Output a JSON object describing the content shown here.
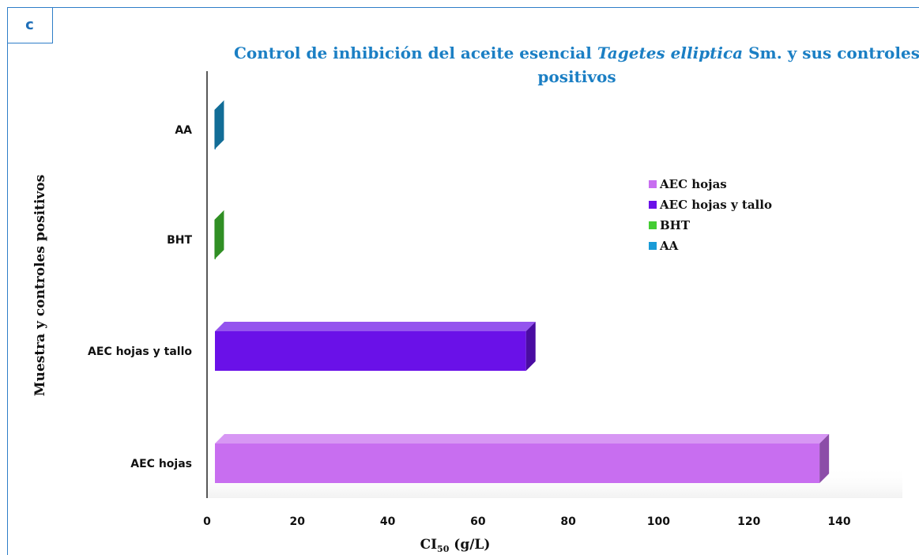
{
  "panel_label": "c",
  "title": {
    "part1": "Control de inhibición del aceite esencial ",
    "italic": "Tagetes elliptica",
    "part2": " Sm. y sus controles",
    "line2": "positivos"
  },
  "chart_data": {
    "type": "bar",
    "orientation": "horizontal",
    "title": "Control de inhibición del aceite esencial Tagetes elliptica Sm. y sus controles positivos",
    "categories": [
      "AA",
      "BHT",
      "AEC hojas y tallo",
      "AEC hojas"
    ],
    "values": [
      2,
      2,
      71,
      136
    ],
    "colors": [
      "#1a9bd7",
      "#44cc33",
      "#6a11e8",
      "#c86ef0"
    ],
    "xlabel": "CI",
    "xlabel_sub": "50",
    "xlabel_unit": " (g/L)",
    "ylabel": "Muestra y controles positivos",
    "xlim": [
      0,
      140
    ],
    "xticks": [
      "0",
      "20",
      "40",
      "60",
      "80",
      "100",
      "120",
      "140"
    ],
    "grid": false,
    "legend_position": "right",
    "legend": [
      "AEC hojas",
      "AEC hojas y tallo",
      "BHT",
      "AA"
    ],
    "legend_colors": [
      "#c86ef0",
      "#6a11e8",
      "#44cc33",
      "#1a9bd7"
    ]
  }
}
